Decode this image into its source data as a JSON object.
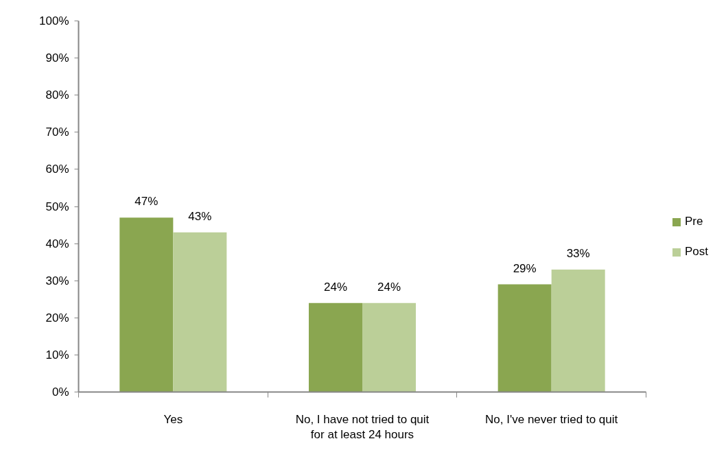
{
  "chart_data": {
    "type": "bar",
    "categories": [
      "Yes",
      "No, I have not tried to quit for at least 24 hours",
      "No, I've never tried to quit"
    ],
    "series": [
      {
        "name": "Pre",
        "color": "#8aa650",
        "values": [
          47,
          24,
          29
        ],
        "value_labels": [
          "47%",
          "24%",
          "29%"
        ]
      },
      {
        "name": "Post",
        "color": "#bbcf98",
        "values": [
          43,
          24,
          33
        ],
        "value_labels": [
          "43%",
          "24%",
          "33%"
        ]
      }
    ],
    "ylim": [
      0,
      100
    ],
    "yticks": [
      {
        "value": 0,
        "label": "0%"
      },
      {
        "value": 10,
        "label": "10%"
      },
      {
        "value": 20,
        "label": "20%"
      },
      {
        "value": 30,
        "label": "30%"
      },
      {
        "value": 40,
        "label": "40%"
      },
      {
        "value": 50,
        "label": "50%"
      },
      {
        "value": 60,
        "label": "60%"
      },
      {
        "value": 70,
        "label": "70%"
      },
      {
        "value": 80,
        "label": "80%"
      },
      {
        "value": 90,
        "label": "90%"
      },
      {
        "value": 100,
        "label": "100%"
      }
    ],
    "legend": "right"
  }
}
